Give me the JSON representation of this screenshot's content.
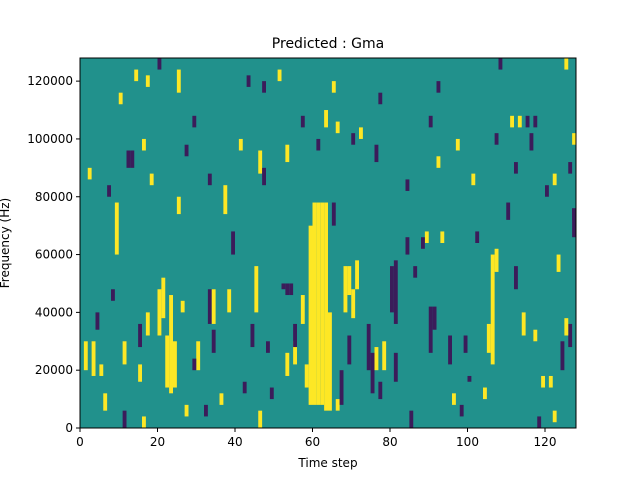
{
  "chart_data": {
    "type": "heatmap",
    "title": "Predicted : Gma",
    "xlabel": "Time step",
    "ylabel": "Frequency (Hz)",
    "xlim": [
      0,
      128
    ],
    "ylim": [
      0,
      128000
    ],
    "x_ticks": [
      0,
      20,
      40,
      60,
      80,
      100,
      120
    ],
    "x_tick_labels": [
      "0",
      "20",
      "40",
      "60",
      "80",
      "100",
      "120"
    ],
    "y_ticks": [
      0,
      20000,
      40000,
      60000,
      80000,
      100000,
      120000
    ],
    "y_tick_labels": [
      "0",
      "20000",
      "40000",
      "60000",
      "80000",
      "100000",
      "120000"
    ],
    "background_value": 0,
    "colormap": {
      "-1": "#3b1c5a",
      "0": "#21918c",
      "1": "#fde725"
    },
    "cells": [
      {
        "t": 60,
        "f0": 8000,
        "f1": 78000,
        "v": 1
      },
      {
        "t": 61,
        "f0": 8000,
        "f1": 78000,
        "v": 1
      },
      {
        "t": 62,
        "f0": 8000,
        "f1": 78000,
        "v": 1
      },
      {
        "t": 63,
        "f0": 6000,
        "f1": 78000,
        "v": 1
      },
      {
        "t": 59,
        "f0": 8000,
        "f1": 70000,
        "v": 1
      },
      {
        "t": 64,
        "f0": 6000,
        "f1": 40000,
        "v": 1
      },
      {
        "t": 58,
        "f0": 14000,
        "f1": 22000,
        "v": 1
      },
      {
        "t": 66,
        "f0": 6000,
        "f1": 10000,
        "v": 1
      },
      {
        "t": 81,
        "f0": 36000,
        "f1": 58000,
        "v": -1
      },
      {
        "t": 81,
        "f0": 16000,
        "f1": 26000,
        "v": -1
      },
      {
        "t": 65,
        "f0": 70000,
        "f1": 78000,
        "v": -1
      },
      {
        "t": 67,
        "f0": 8000,
        "f1": 20000,
        "v": -1
      },
      {
        "t": 69,
        "f0": 22000,
        "f1": 32000,
        "v": -1
      },
      {
        "t": 74,
        "f0": 20000,
        "f1": 36000,
        "v": -1
      },
      {
        "t": 75,
        "f0": 12000,
        "f1": 26000,
        "v": -1
      },
      {
        "t": 77,
        "f0": 10000,
        "f1": 16000,
        "v": -1
      },
      {
        "t": 80,
        "f0": 40000,
        "f1": 56000,
        "v": -1
      },
      {
        "t": 90,
        "f0": 26000,
        "f1": 42000,
        "v": -1
      },
      {
        "t": 95,
        "f0": 22000,
        "f1": 32000,
        "v": -1
      },
      {
        "t": 112,
        "f0": 48000,
        "f1": 56000,
        "v": -1
      },
      {
        "t": 124,
        "f0": 20000,
        "f1": 30000,
        "v": -1
      },
      {
        "t": 126,
        "f0": 28000,
        "f1": 36000,
        "v": -1
      },
      {
        "t": 127,
        "f0": 66000,
        "f1": 76000,
        "v": -1
      },
      {
        "t": 22,
        "f0": 14000,
        "f1": 32000,
        "v": 1
      },
      {
        "t": 23,
        "f0": 12000,
        "f1": 46000,
        "v": 1
      },
      {
        "t": 24,
        "f0": 14000,
        "f1": 30000,
        "v": 1
      },
      {
        "t": 1,
        "f0": 20000,
        "f1": 30000,
        "v": 1
      },
      {
        "t": 3,
        "f0": 18000,
        "f1": 30000,
        "v": 1
      },
      {
        "t": 5,
        "f0": 18000,
        "f1": 22000,
        "v": 1
      },
      {
        "t": 9,
        "f0": 60000,
        "f1": 78000,
        "v": 1
      },
      {
        "t": 11,
        "f0": 22000,
        "f1": 30000,
        "v": 1
      },
      {
        "t": 15,
        "f0": 16000,
        "f1": 22000,
        "v": 1
      },
      {
        "t": 17,
        "f0": 32000,
        "f1": 40000,
        "v": 1
      },
      {
        "t": 20,
        "f0": 32000,
        "f1": 48000,
        "v": 1
      },
      {
        "t": 21,
        "f0": 38000,
        "f1": 52000,
        "v": 1
      },
      {
        "t": 26,
        "f0": 40000,
        "f1": 44000,
        "v": 1
      },
      {
        "t": 30,
        "f0": 20000,
        "f1": 30000,
        "v": 1
      },
      {
        "t": 38,
        "f0": 40000,
        "f1": 48000,
        "v": 1
      },
      {
        "t": 45,
        "f0": 40000,
        "f1": 56000,
        "v": 1
      },
      {
        "t": 53,
        "f0": 18000,
        "f1": 26000,
        "v": 1
      },
      {
        "t": 55,
        "f0": 22000,
        "f1": 30000,
        "v": 1
      },
      {
        "t": 57,
        "f0": 36000,
        "f1": 46000,
        "v": 1
      },
      {
        "t": 68,
        "f0": 40000,
        "f1": 56000,
        "v": 1
      },
      {
        "t": 69,
        "f0": 46000,
        "f1": 56000,
        "v": 1
      },
      {
        "t": 70,
        "f0": 38000,
        "f1": 48000,
        "v": 1
      },
      {
        "t": 71,
        "f0": 48000,
        "f1": 58000,
        "v": 1
      },
      {
        "t": 76,
        "f0": 20000,
        "f1": 28000,
        "v": 1
      },
      {
        "t": 78,
        "f0": 20000,
        "f1": 30000,
        "v": 1
      },
      {
        "t": 89,
        "f0": 64000,
        "f1": 68000,
        "v": 1
      },
      {
        "t": 93,
        "f0": 64000,
        "f1": 68000,
        "v": 1
      },
      {
        "t": 105,
        "f0": 26000,
        "f1": 36000,
        "v": 1
      },
      {
        "t": 106,
        "f0": 22000,
        "f1": 60000,
        "v": 1
      },
      {
        "t": 107,
        "f0": 54000,
        "f1": 62000,
        "v": 1
      },
      {
        "t": 114,
        "f0": 32000,
        "f1": 40000,
        "v": 1
      },
      {
        "t": 117,
        "f0": 30000,
        "f1": 34000,
        "v": 1
      },
      {
        "t": 119,
        "f0": 14000,
        "f1": 18000,
        "v": 1
      },
      {
        "t": 121,
        "f0": 14000,
        "f1": 18000,
        "v": 1
      },
      {
        "t": 123,
        "f0": 54000,
        "f1": 60000,
        "v": 1
      },
      {
        "t": 125,
        "f0": 32000,
        "f1": 38000,
        "v": 1
      },
      {
        "t": 29,
        "f0": 20000,
        "f1": 24000,
        "v": -1
      },
      {
        "t": 33,
        "f0": 36000,
        "f1": 48000,
        "v": -1
      },
      {
        "t": 34,
        "f0": 36000,
        "f1": 48000,
        "v": 1
      },
      {
        "t": 42,
        "f0": 12000,
        "f1": 16000,
        "v": -1
      },
      {
        "t": 44,
        "f0": 28000,
        "f1": 36000,
        "v": -1
      },
      {
        "t": 53,
        "f0": 46000,
        "f1": 50000,
        "v": -1
      },
      {
        "t": 55,
        "f0": 28000,
        "f1": 36000,
        "v": -1
      },
      {
        "t": 15,
        "f0": 28000,
        "f1": 36000,
        "v": -1
      },
      {
        "t": 34,
        "f0": 26000,
        "f1": 34000,
        "v": -1
      },
      {
        "t": 48,
        "f0": 26000,
        "f1": 30000,
        "v": -1
      },
      {
        "t": 91,
        "f0": 34000,
        "f1": 42000,
        "v": -1
      },
      {
        "t": 4,
        "f0": 34000,
        "f1": 40000,
        "v": -1
      },
      {
        "t": 8,
        "f0": 44000,
        "f1": 48000,
        "v": -1
      },
      {
        "t": 12,
        "f0": 90000,
        "f1": 96000,
        "v": -1
      },
      {
        "t": 13,
        "f0": 90000,
        "f1": 96000,
        "v": -1
      },
      {
        "t": 52,
        "f0": 48000,
        "f1": 50000,
        "v": -1
      },
      {
        "t": 54,
        "f0": 46000,
        "f1": 50000,
        "v": -1
      },
      {
        "t": 99,
        "f0": 26000,
        "f1": 32000,
        "v": -1
      },
      {
        "t": 100,
        "f0": 16000,
        "f1": 18000,
        "v": -1
      },
      {
        "t": 27,
        "f0": 94000,
        "f1": 98000,
        "v": -1
      },
      {
        "t": 37,
        "f0": 74000,
        "f1": 84000,
        "v": 1
      },
      {
        "t": 39,
        "f0": 60000,
        "f1": 68000,
        "v": -1
      },
      {
        "t": 2,
        "f0": 86000,
        "f1": 90000,
        "v": 1
      },
      {
        "t": 7,
        "f0": 80000,
        "f1": 84000,
        "v": -1
      },
      {
        "t": 16,
        "f0": 96000,
        "f1": 100000,
        "v": 1
      },
      {
        "t": 18,
        "f0": 84000,
        "f1": 88000,
        "v": 1
      },
      {
        "t": 25,
        "f0": 74000,
        "f1": 80000,
        "v": 1
      },
      {
        "t": 33,
        "f0": 84000,
        "f1": 88000,
        "v": -1
      },
      {
        "t": 41,
        "f0": 96000,
        "f1": 100000,
        "v": 1
      },
      {
        "t": 46,
        "f0": 88000,
        "f1": 96000,
        "v": 1
      },
      {
        "t": 47,
        "f0": 84000,
        "f1": 90000,
        "v": -1
      },
      {
        "t": 53,
        "f0": 92000,
        "f1": 98000,
        "v": 1
      },
      {
        "t": 61,
        "f0": 96000,
        "f1": 100000,
        "v": -1
      },
      {
        "t": 63,
        "f0": 104000,
        "f1": 110000,
        "v": 1
      },
      {
        "t": 66,
        "f0": 102000,
        "f1": 106000,
        "v": 1
      },
      {
        "t": 70,
        "f0": 98000,
        "f1": 102000,
        "v": -1
      },
      {
        "t": 72,
        "f0": 100000,
        "f1": 104000,
        "v": 1
      },
      {
        "t": 76,
        "f0": 92000,
        "f1": 98000,
        "v": -1
      },
      {
        "t": 84,
        "f0": 82000,
        "f1": 86000,
        "v": -1
      },
      {
        "t": 90,
        "f0": 104000,
        "f1": 108000,
        "v": -1
      },
      {
        "t": 92,
        "f0": 90000,
        "f1": 94000,
        "v": 1
      },
      {
        "t": 97,
        "f0": 96000,
        "f1": 100000,
        "v": 1
      },
      {
        "t": 101,
        "f0": 84000,
        "f1": 88000,
        "v": 1
      },
      {
        "t": 107,
        "f0": 98000,
        "f1": 102000,
        "v": -1
      },
      {
        "t": 112,
        "f0": 88000,
        "f1": 92000,
        "v": -1
      },
      {
        "t": 115,
        "f0": 104000,
        "f1": 108000,
        "v": -1
      },
      {
        "t": 116,
        "f0": 96000,
        "f1": 102000,
        "v": -1
      },
      {
        "t": 120,
        "f0": 80000,
        "f1": 84000,
        "v": -1
      },
      {
        "t": 122,
        "f0": 84000,
        "f1": 88000,
        "v": 1
      },
      {
        "t": 126,
        "f0": 88000,
        "f1": 92000,
        "v": -1
      },
      {
        "t": 127,
        "f0": 72000,
        "f1": 76000,
        "v": -1
      },
      {
        "t": 10,
        "f0": 112000,
        "f1": 116000,
        "v": 1
      },
      {
        "t": 14,
        "f0": 120000,
        "f1": 124000,
        "v": 1
      },
      {
        "t": 17,
        "f0": 118000,
        "f1": 122000,
        "v": 1
      },
      {
        "t": 20,
        "f0": 124000,
        "f1": 128000,
        "v": -1
      },
      {
        "t": 25,
        "f0": 116000,
        "f1": 124000,
        "v": 1
      },
      {
        "t": 29,
        "f0": 104000,
        "f1": 108000,
        "v": -1
      },
      {
        "t": 43,
        "f0": 118000,
        "f1": 122000,
        "v": -1
      },
      {
        "t": 47,
        "f0": 116000,
        "f1": 120000,
        "v": -1
      },
      {
        "t": 51,
        "f0": 120000,
        "f1": 124000,
        "v": 1
      },
      {
        "t": 57,
        "f0": 104000,
        "f1": 108000,
        "v": -1
      },
      {
        "t": 65,
        "f0": 116000,
        "f1": 120000,
        "v": 1
      },
      {
        "t": 77,
        "f0": 112000,
        "f1": 116000,
        "v": -1
      },
      {
        "t": 92,
        "f0": 116000,
        "f1": 120000,
        "v": -1
      },
      {
        "t": 108,
        "f0": 124000,
        "f1": 128000,
        "v": -1
      },
      {
        "t": 111,
        "f0": 104000,
        "f1": 108000,
        "v": 1
      },
      {
        "t": 113,
        "f0": 104000,
        "f1": 108000,
        "v": 1
      },
      {
        "t": 117,
        "f0": 104000,
        "f1": 108000,
        "v": -1
      },
      {
        "t": 125,
        "f0": 124000,
        "f1": 128000,
        "v": 1
      },
      {
        "t": 127,
        "f0": 98000,
        "f1": 102000,
        "v": 1
      },
      {
        "t": 6,
        "f0": 6000,
        "f1": 12000,
        "v": 1
      },
      {
        "t": 11,
        "f0": 0,
        "f1": 6000,
        "v": -1
      },
      {
        "t": 16,
        "f0": 0,
        "f1": 4000,
        "v": 1
      },
      {
        "t": 27,
        "f0": 4000,
        "f1": 8000,
        "v": 1
      },
      {
        "t": 32,
        "f0": 4000,
        "f1": 8000,
        "v": -1
      },
      {
        "t": 36,
        "f0": 8000,
        "f1": 12000,
        "v": 1
      },
      {
        "t": 46,
        "f0": 0,
        "f1": 6000,
        "v": 1
      },
      {
        "t": 49,
        "f0": 10000,
        "f1": 14000,
        "v": -1
      },
      {
        "t": 85,
        "f0": 0,
        "f1": 6000,
        "v": -1
      },
      {
        "t": 96,
        "f0": 8000,
        "f1": 12000,
        "v": 1
      },
      {
        "t": 98,
        "f0": 4000,
        "f1": 8000,
        "v": -1
      },
      {
        "t": 104,
        "f0": 10000,
        "f1": 14000,
        "v": 1
      },
      {
        "t": 118,
        "f0": 0,
        "f1": 4000,
        "v": -1
      },
      {
        "t": 122,
        "f0": 2000,
        "f1": 6000,
        "v": 1
      },
      {
        "t": 102,
        "f0": 64000,
        "f1": 68000,
        "v": -1
      },
      {
        "t": 110,
        "f0": 72000,
        "f1": 78000,
        "v": -1
      },
      {
        "t": 84,
        "f0": 60000,
        "f1": 66000,
        "v": -1
      },
      {
        "t": 86,
        "f0": 52000,
        "f1": 56000,
        "v": -1
      },
      {
        "t": 88,
        "f0": 62000,
        "f1": 66000,
        "v": -1
      }
    ]
  }
}
